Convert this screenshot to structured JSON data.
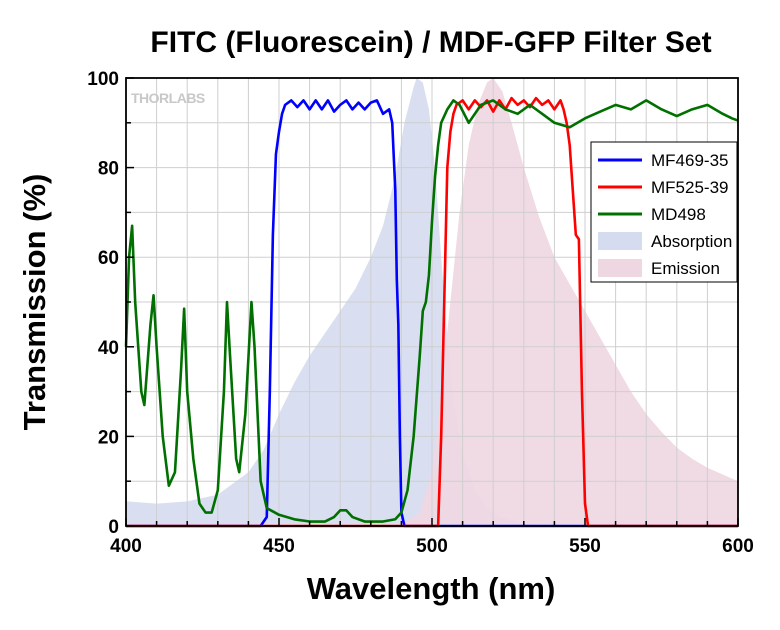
{
  "chart_data": {
    "type": "line",
    "title": "FITC (Fluorescein) / MDF-GFP Filter Set",
    "xlabel": "Wavelength (nm)",
    "ylabel": "Transmission (%)",
    "xlim": [
      400,
      600
    ],
    "ylim": [
      0,
      100
    ],
    "x_ticks": [
      400,
      450,
      500,
      550,
      600
    ],
    "y_ticks": [
      0,
      20,
      40,
      60,
      80,
      100
    ],
    "grid": true,
    "legend_position": "right",
    "watermark": "THORLABS",
    "series": [
      {
        "name": "MF469-35",
        "kind": "line",
        "color": "#0000ff",
        "points": [
          [
            400,
            0
          ],
          [
            444,
            0
          ],
          [
            446,
            2
          ],
          [
            447,
            30
          ],
          [
            448,
            65
          ],
          [
            449,
            83
          ],
          [
            450,
            88
          ],
          [
            451,
            92
          ],
          [
            452,
            94
          ],
          [
            454,
            95
          ],
          [
            456,
            93.5
          ],
          [
            458,
            95
          ],
          [
            460,
            93
          ],
          [
            462,
            95
          ],
          [
            464,
            93
          ],
          [
            466,
            95
          ],
          [
            468,
            92.5
          ],
          [
            470,
            94
          ],
          [
            472,
            95
          ],
          [
            474,
            93
          ],
          [
            476,
            94.5
          ],
          [
            478,
            93
          ],
          [
            480,
            94.5
          ],
          [
            482,
            95
          ],
          [
            484,
            92
          ],
          [
            486,
            93
          ],
          [
            487,
            90
          ],
          [
            488,
            75
          ],
          [
            488.5,
            55
          ],
          [
            489,
            45
          ],
          [
            489.5,
            20
          ],
          [
            490,
            3
          ],
          [
            491,
            0
          ],
          [
            600,
            0
          ]
        ]
      },
      {
        "name": "MF525-39",
        "kind": "line",
        "color": "#ff0000",
        "points": [
          [
            400,
            0
          ],
          [
            502,
            0
          ],
          [
            503,
            20
          ],
          [
            504,
            50
          ],
          [
            505,
            80
          ],
          [
            506,
            88
          ],
          [
            507,
            92
          ],
          [
            508,
            94
          ],
          [
            510,
            95
          ],
          [
            512,
            93
          ],
          [
            514,
            95
          ],
          [
            516,
            93.5
          ],
          [
            518,
            95
          ],
          [
            520,
            92.5
          ],
          [
            522,
            95
          ],
          [
            524,
            93
          ],
          [
            526,
            95.5
          ],
          [
            528,
            94
          ],
          [
            530,
            95
          ],
          [
            532,
            93.5
          ],
          [
            534,
            95.5
          ],
          [
            536,
            94
          ],
          [
            538,
            95
          ],
          [
            540,
            93
          ],
          [
            542,
            95
          ],
          [
            543,
            93
          ],
          [
            544,
            90
          ],
          [
            545,
            85
          ],
          [
            546,
            75
          ],
          [
            547,
            65
          ],
          [
            548,
            64
          ],
          [
            549,
            30
          ],
          [
            550,
            5
          ],
          [
            551,
            0
          ],
          [
            600,
            0
          ]
        ]
      },
      {
        "name": "MD498",
        "kind": "line",
        "color": "#007000",
        "points": [
          [
            400,
            40
          ],
          [
            401,
            60
          ],
          [
            402,
            67
          ],
          [
            403,
            50
          ],
          [
            405,
            30
          ],
          [
            406,
            27
          ],
          [
            408,
            45
          ],
          [
            409,
            51.5
          ],
          [
            410,
            40
          ],
          [
            412,
            20
          ],
          [
            414,
            9
          ],
          [
            416,
            12
          ],
          [
            418,
            35
          ],
          [
            419,
            48.5
          ],
          [
            420,
            30
          ],
          [
            422,
            15
          ],
          [
            424,
            5
          ],
          [
            426,
            3
          ],
          [
            428,
            3
          ],
          [
            430,
            8
          ],
          [
            432,
            30
          ],
          [
            433,
            50
          ],
          [
            434,
            38
          ],
          [
            436,
            15
          ],
          [
            437,
            12
          ],
          [
            439,
            25
          ],
          [
            441,
            50
          ],
          [
            442,
            40
          ],
          [
            444,
            10
          ],
          [
            446,
            4
          ],
          [
            450,
            2.5
          ],
          [
            455,
            1.5
          ],
          [
            460,
            1
          ],
          [
            465,
            1
          ],
          [
            468,
            2
          ],
          [
            470,
            3.5
          ],
          [
            472,
            3.5
          ],
          [
            474,
            2
          ],
          [
            478,
            1
          ],
          [
            484,
            1
          ],
          [
            488,
            1.5
          ],
          [
            490,
            3
          ],
          [
            492,
            8
          ],
          [
            494,
            20
          ],
          [
            496,
            38
          ],
          [
            497,
            48
          ],
          [
            498,
            50
          ],
          [
            499,
            56
          ],
          [
            500,
            68
          ],
          [
            501,
            78
          ],
          [
            502,
            85
          ],
          [
            503,
            90
          ],
          [
            505,
            93
          ],
          [
            507,
            95
          ],
          [
            509,
            94
          ],
          [
            512,
            90
          ],
          [
            516,
            94
          ],
          [
            520,
            95
          ],
          [
            524,
            93
          ],
          [
            528,
            92
          ],
          [
            532,
            94
          ],
          [
            536,
            92
          ],
          [
            540,
            90
          ],
          [
            545,
            89
          ],
          [
            550,
            91
          ],
          [
            555,
            92.5
          ],
          [
            560,
            94
          ],
          [
            565,
            93
          ],
          [
            570,
            95
          ],
          [
            575,
            93
          ],
          [
            580,
            91.5
          ],
          [
            585,
            93
          ],
          [
            590,
            94
          ],
          [
            595,
            92
          ],
          [
            598,
            91
          ],
          [
            600,
            90.5
          ]
        ]
      },
      {
        "name": "Absorption",
        "kind": "area",
        "color": "#d6dcef",
        "points": [
          [
            400,
            5.5
          ],
          [
            410,
            5
          ],
          [
            420,
            5.5
          ],
          [
            430,
            7
          ],
          [
            440,
            12
          ],
          [
            445,
            17
          ],
          [
            450,
            25
          ],
          [
            455,
            32
          ],
          [
            460,
            38
          ],
          [
            465,
            43
          ],
          [
            470,
            48
          ],
          [
            475,
            53
          ],
          [
            480,
            60
          ],
          [
            484,
            67
          ],
          [
            488,
            78
          ],
          [
            491,
            90
          ],
          [
            494,
            98
          ],
          [
            495,
            100
          ],
          [
            497,
            99
          ],
          [
            499,
            93
          ],
          [
            501,
            80
          ],
          [
            503,
            60
          ],
          [
            505,
            42
          ],
          [
            507,
            28
          ],
          [
            510,
            16
          ],
          [
            514,
            8
          ],
          [
            518,
            4
          ],
          [
            522,
            2
          ],
          [
            530,
            0.5
          ],
          [
            540,
            0
          ]
        ]
      },
      {
        "name": "Emission",
        "kind": "area",
        "color": "#efd7e2",
        "points": [
          [
            490,
            0
          ],
          [
            496,
            3
          ],
          [
            500,
            12
          ],
          [
            503,
            30
          ],
          [
            506,
            50
          ],
          [
            509,
            70
          ],
          [
            512,
            85
          ],
          [
            515,
            94
          ],
          [
            518,
            99
          ],
          [
            520,
            100
          ],
          [
            523,
            97
          ],
          [
            526,
            90
          ],
          [
            530,
            80
          ],
          [
            535,
            69
          ],
          [
            540,
            60
          ],
          [
            545,
            54
          ],
          [
            550,
            48
          ],
          [
            555,
            42
          ],
          [
            560,
            36
          ],
          [
            565,
            30
          ],
          [
            570,
            25
          ],
          [
            575,
            21
          ],
          [
            580,
            17.5
          ],
          [
            585,
            15
          ],
          [
            590,
            13
          ],
          [
            595,
            11.5
          ],
          [
            600,
            10
          ]
        ]
      }
    ]
  }
}
